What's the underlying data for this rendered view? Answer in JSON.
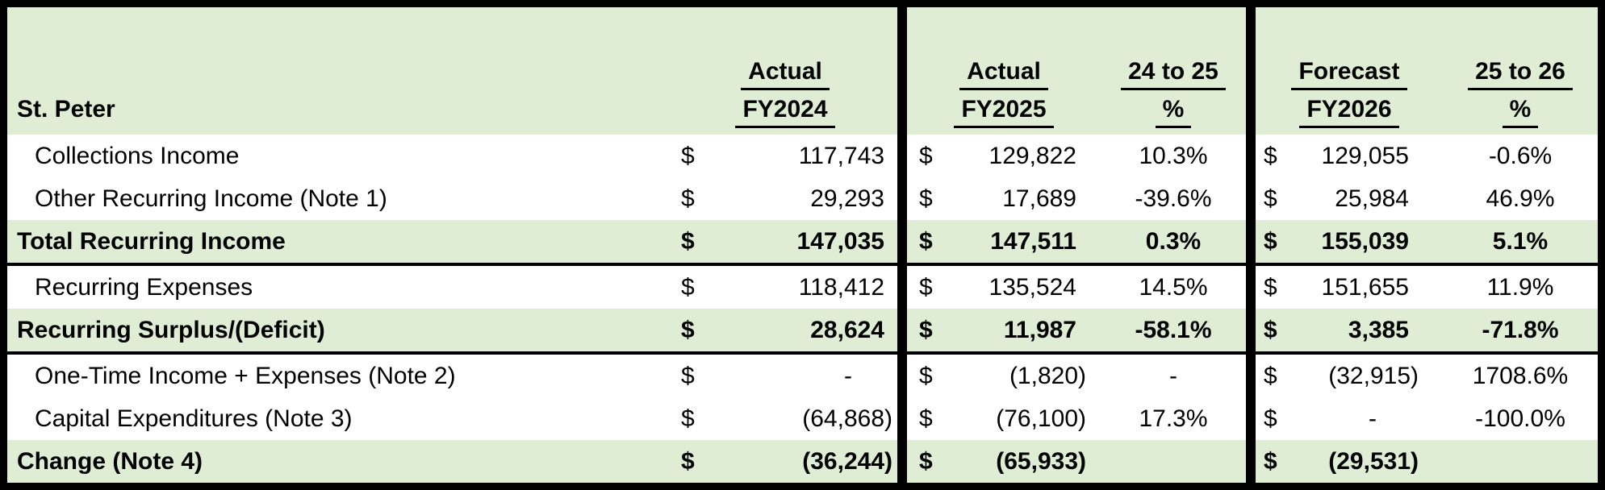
{
  "table": {
    "title": "St. Peter",
    "currency_symbol": "$",
    "colors": {
      "band_green": "#dfedd4",
      "border_black": "#000000",
      "row_white": "#ffffff",
      "text": "#000000"
    },
    "header": {
      "fy2024": {
        "line1": "Actual",
        "line2": "FY2024"
      },
      "fy2025": {
        "line1": "Actual",
        "line2": "FY2025"
      },
      "pct_24_25": {
        "line1": "24 to 25",
        "line2": "%"
      },
      "fy2026": {
        "line1": "Forecast",
        "line2": "FY2026"
      },
      "pct_25_26": {
        "line1": "25 to 26",
        "line2": "%"
      }
    },
    "rows": [
      {
        "label": "Collections Income",
        "fy2024": "117,743",
        "fy2025": "129,822",
        "pct_24_25": "10.3%",
        "fy2026": "129,055",
        "pct_25_26": "-0.6%"
      },
      {
        "label": "Other Recurring Income (Note 1)",
        "fy2024": "29,293",
        "fy2025": "17,689",
        "pct_24_25": "-39.6%",
        "fy2026": "25,984",
        "pct_25_26": "46.9%"
      },
      {
        "label": "Total Recurring Income",
        "fy2024": "147,035",
        "fy2025": "147,511",
        "pct_24_25": "0.3%",
        "fy2026": "155,039",
        "pct_25_26": "5.1%"
      },
      {
        "label": "Recurring Expenses",
        "fy2024": "118,412",
        "fy2025": "135,524",
        "pct_24_25": "14.5%",
        "fy2026": "151,655",
        "pct_25_26": "11.9%"
      },
      {
        "label": "Recurring Surplus/(Deficit)",
        "fy2024": "28,624",
        "fy2025": "11,987",
        "pct_24_25": "-58.1%",
        "fy2026": "3,385",
        "pct_25_26": "-71.8%"
      },
      {
        "label": "One-Time Income + Expenses (Note 2)",
        "fy2024": "-",
        "fy2025": "(1,820)",
        "pct_24_25": "-",
        "fy2026": "(32,915)",
        "pct_25_26": "1708.6%"
      },
      {
        "label": "Capital Expenditures (Note 3)",
        "fy2024": "(64,868)",
        "fy2025": "(76,100)",
        "pct_24_25": "17.3%",
        "fy2026": "-",
        "pct_25_26": "-100.0%"
      },
      {
        "label": "Change (Note 4)",
        "fy2024": "(36,244)",
        "fy2025": "(65,933)",
        "pct_24_25": "",
        "fy2026": "(29,531)",
        "pct_25_26": ""
      }
    ]
  }
}
